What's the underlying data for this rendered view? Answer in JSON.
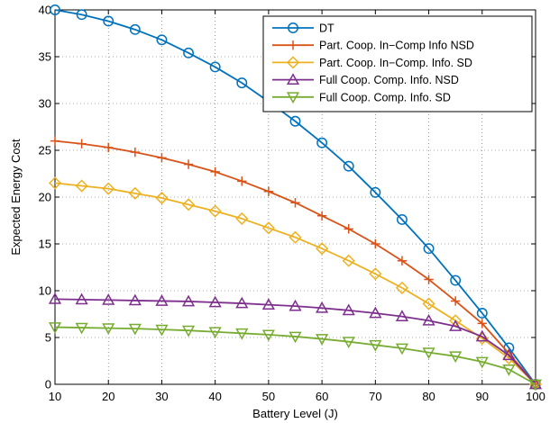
{
  "chart_data": {
    "type": "line",
    "title": "",
    "xlabel": "Battery Level (J)",
    "ylabel": "Expected Energy Cost",
    "xlim": [
      10,
      100
    ],
    "ylim": [
      0,
      40
    ],
    "xticks": [
      10,
      20,
      30,
      40,
      50,
      60,
      70,
      80,
      90,
      100
    ],
    "yticks": [
      0,
      5,
      10,
      15,
      20,
      25,
      30,
      35,
      40
    ],
    "grid": true,
    "legend_position": "top-right",
    "x": [
      10,
      15,
      20,
      25,
      30,
      35,
      40,
      45,
      50,
      55,
      60,
      65,
      70,
      75,
      80,
      85,
      90,
      95,
      100
    ],
    "series": [
      {
        "name": "DT",
        "color": "#0072BD",
        "marker": "circle",
        "values": [
          40.0,
          39.5,
          38.8,
          37.9,
          36.8,
          35.4,
          33.9,
          32.2,
          30.2,
          28.1,
          25.8,
          23.3,
          20.5,
          17.6,
          14.5,
          11.1,
          7.6,
          3.9,
          0.0
        ]
      },
      {
        "name": "Part. Coop. In−Comp Info NSD",
        "color": "#D95319",
        "marker": "plus",
        "values": [
          26.0,
          25.7,
          25.3,
          24.8,
          24.2,
          23.5,
          22.7,
          21.7,
          20.6,
          19.4,
          18.0,
          16.6,
          15.0,
          13.2,
          11.2,
          8.9,
          6.5,
          3.3,
          0.0
        ]
      },
      {
        "name": "Part. Coop. In−Comp. Info. SD",
        "color": "#EDB120",
        "marker": "diamond",
        "values": [
          21.5,
          21.2,
          20.9,
          20.4,
          19.9,
          19.2,
          18.5,
          17.7,
          16.7,
          15.7,
          14.5,
          13.2,
          11.8,
          10.3,
          8.6,
          6.8,
          4.9,
          2.8,
          0.0
        ]
      },
      {
        "name": "Full Coop. Comp. Info. NSD",
        "color": "#7E2F8E",
        "marker": "triangle-up",
        "values": [
          9.1,
          9.05,
          9.0,
          8.95,
          8.9,
          8.85,
          8.75,
          8.65,
          8.5,
          8.35,
          8.15,
          7.9,
          7.6,
          7.25,
          6.8,
          6.2,
          5.1,
          3.1,
          0.0
        ]
      },
      {
        "name": "Full Coop. Comp. Info. SD",
        "color": "#77AC30",
        "marker": "triangle-down",
        "values": [
          6.1,
          6.05,
          6.0,
          5.95,
          5.85,
          5.75,
          5.6,
          5.45,
          5.3,
          5.1,
          4.85,
          4.55,
          4.2,
          3.85,
          3.4,
          3.0,
          2.4,
          1.6,
          0.0
        ]
      }
    ]
  }
}
